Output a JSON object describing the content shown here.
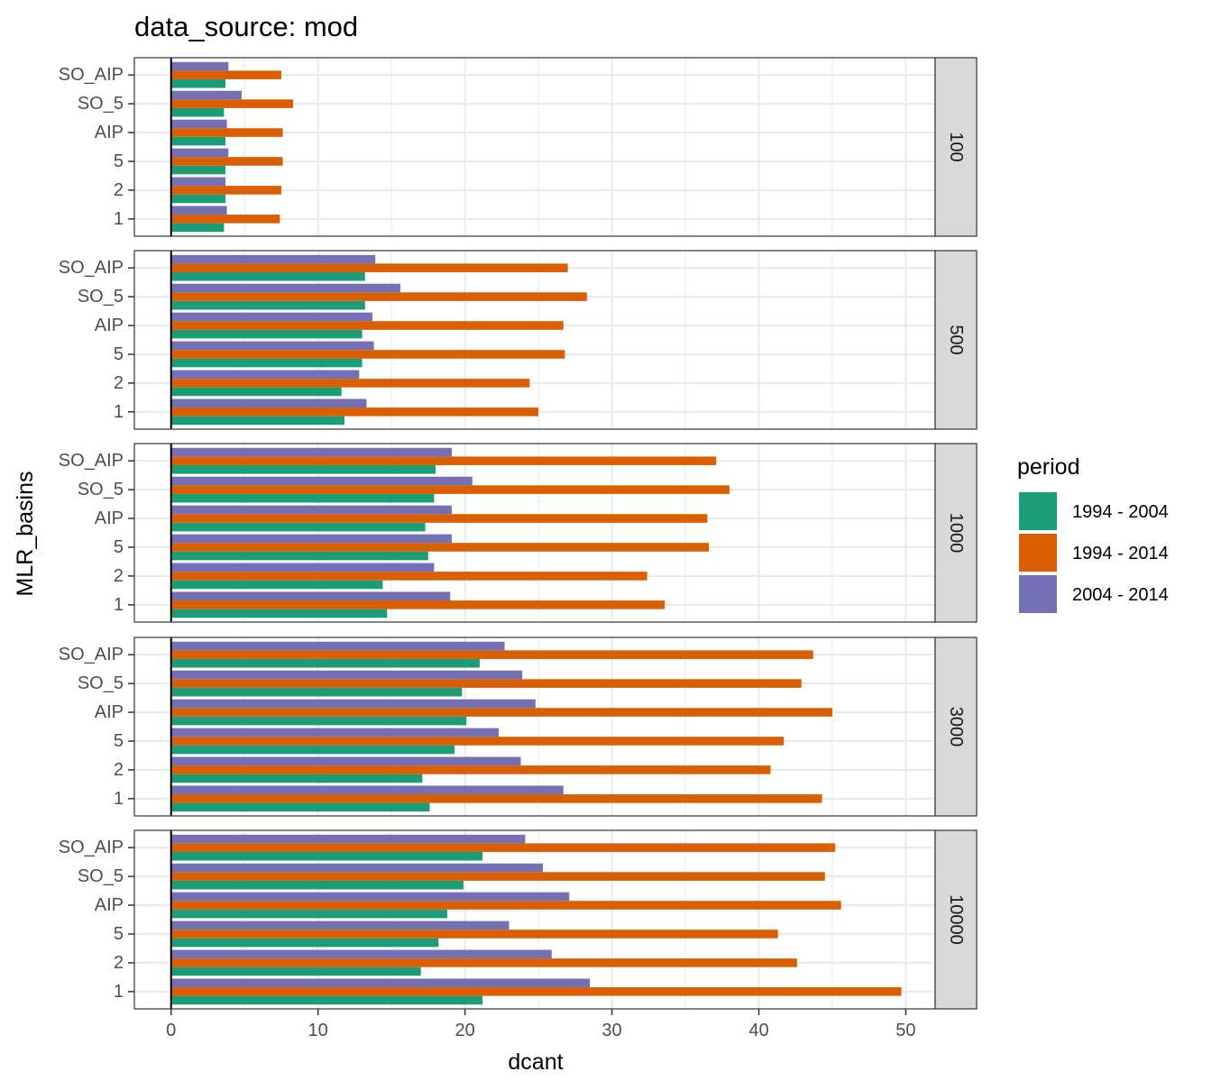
{
  "chart_data": {
    "type": "bar",
    "orientation": "horizontal",
    "title": "data_source: mod",
    "xlabel": "dcant",
    "ylabel": "MLR_basins",
    "xlim": [
      -2.5,
      52
    ],
    "x_ticks": [
      0,
      10,
      20,
      30,
      40,
      50
    ],
    "grid": true,
    "categories": [
      "1",
      "2",
      "5",
      "AIP",
      "SO_5",
      "SO_AIP"
    ],
    "legend": {
      "title": "period",
      "placement": "right",
      "entries": [
        {
          "name": "1994 - 2004",
          "color": "#1b9e77"
        },
        {
          "name": "1994 - 2014",
          "color": "#d95f02"
        },
        {
          "name": "2004 - 2014",
          "color": "#7570b3"
        }
      ]
    },
    "facets": [
      {
        "label": "100",
        "series": [
          {
            "name": "1994 - 2004",
            "values": [
              3.6,
              3.7,
              3.7,
              3.7,
              3.6,
              3.7
            ]
          },
          {
            "name": "1994 - 2014",
            "values": [
              7.4,
              7.5,
              7.6,
              7.6,
              8.3,
              7.5
            ]
          },
          {
            "name": "2004 - 2014",
            "values": [
              3.8,
              3.7,
              3.9,
              3.8,
              4.8,
              3.9
            ]
          }
        ]
      },
      {
        "label": "500",
        "series": [
          {
            "name": "1994 - 2004",
            "values": [
              11.8,
              11.6,
              13.0,
              13.0,
              13.2,
              13.2
            ]
          },
          {
            "name": "1994 - 2014",
            "values": [
              25.0,
              24.4,
              26.8,
              26.7,
              28.3,
              27.0
            ]
          },
          {
            "name": "2004 - 2014",
            "values": [
              13.3,
              12.8,
              13.8,
              13.7,
              15.6,
              13.9
            ]
          }
        ]
      },
      {
        "label": "1000",
        "series": [
          {
            "name": "1994 - 2004",
            "values": [
              14.7,
              14.4,
              17.5,
              17.3,
              17.9,
              18.0
            ]
          },
          {
            "name": "1994 - 2014",
            "values": [
              33.6,
              32.4,
              36.6,
              36.5,
              38.0,
              37.1
            ]
          },
          {
            "name": "2004 - 2014",
            "values": [
              19.0,
              17.9,
              19.1,
              19.1,
              20.5,
              19.1
            ]
          }
        ]
      },
      {
        "label": "3000",
        "series": [
          {
            "name": "1994 - 2004",
            "values": [
              17.6,
              17.1,
              19.3,
              20.1,
              19.8,
              21.0
            ]
          },
          {
            "name": "1994 - 2014",
            "values": [
              44.3,
              40.8,
              41.7,
              45.0,
              42.9,
              43.7
            ]
          },
          {
            "name": "2004 - 2014",
            "values": [
              26.7,
              23.8,
              22.3,
              24.8,
              23.9,
              22.7
            ]
          }
        ]
      },
      {
        "label": "10000",
        "series": [
          {
            "name": "1994 - 2004",
            "values": [
              21.2,
              17.0,
              18.2,
              18.8,
              19.9,
              21.2
            ]
          },
          {
            "name": "1994 - 2014",
            "values": [
              49.7,
              42.6,
              41.3,
              45.6,
              44.5,
              45.2
            ]
          },
          {
            "name": "2004 - 2014",
            "values": [
              28.5,
              25.9,
              23.0,
              27.1,
              25.3,
              24.1
            ]
          }
        ]
      }
    ]
  }
}
